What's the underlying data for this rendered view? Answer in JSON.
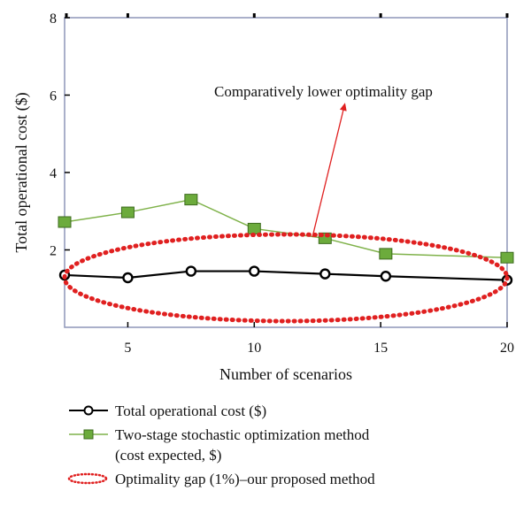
{
  "chart_data": {
    "type": "line",
    "xlabel": "Number of scenarios",
    "ylabel": "Total operational cost ($)",
    "xlim": [
      2.5,
      20
    ],
    "ylim": [
      0,
      8
    ],
    "xticks": [
      5,
      10,
      15,
      20
    ],
    "yticks": [
      2,
      4,
      6,
      8
    ],
    "grid": false,
    "legend_position": "bottom",
    "series": [
      {
        "name": "Total operational cost ($)",
        "color": "#000000",
        "marker": "open-circle",
        "x": [
          2.5,
          5,
          7.5,
          10,
          12.8,
          15.2,
          20
        ],
        "y": [
          1.35,
          1.28,
          1.45,
          1.45,
          1.38,
          1.32,
          1.22
        ]
      },
      {
        "name": "Two-stage stochastic optimization method",
        "name_line2": "(cost expected, $)",
        "color": "#7fb24a",
        "marker": "square",
        "x": [
          2.5,
          5,
          7.5,
          10,
          12.8,
          15.2,
          20
        ],
        "y": [
          2.72,
          2.97,
          3.3,
          2.55,
          2.3,
          1.9,
          1.8
        ]
      }
    ],
    "annotation": {
      "text": "Comparatively lower optimality gap",
      "color": "#e02020"
    },
    "ellipse": {
      "name": "Optimality gap (1%)–our proposed method",
      "color": "#e02020",
      "style": "dotted"
    }
  }
}
